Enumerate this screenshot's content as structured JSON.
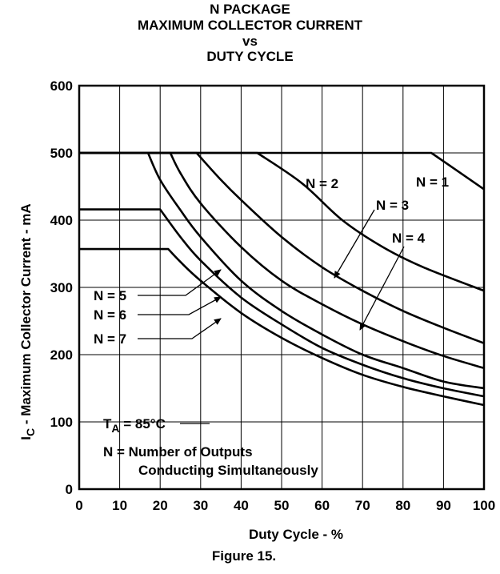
{
  "chart_data": {
    "type": "line",
    "title_lines": [
      "N PACKAGE",
      "MAXIMUM COLLECTOR CURRENT",
      "vs",
      "DUTY CYCLE"
    ],
    "xlabel": "Duty Cycle -  %",
    "ylabel_main": "I",
    "ylabel_sub": "C",
    "ylabel_rest": " -  Maximum Collector Current - mA",
    "caption": "Figure 15.",
    "xlim": [
      0,
      100
    ],
    "ylim": [
      0,
      600
    ],
    "x_ticks": [
      "0",
      "10",
      "20",
      "30",
      "40",
      "50",
      "60",
      "70",
      "80",
      "90",
      "100"
    ],
    "y_ticks": [
      "0",
      "100",
      "200",
      "300",
      "400",
      "500",
      "600"
    ],
    "grid": true,
    "series": [
      {
        "name": "N = 1",
        "points": [
          [
            0,
            500
          ],
          [
            87,
            500
          ],
          [
            100,
            446
          ]
        ]
      },
      {
        "name": "N = 2",
        "points": [
          [
            0,
            500
          ],
          [
            44,
            500
          ],
          [
            55,
            455
          ],
          [
            65,
            400
          ],
          [
            75,
            360
          ],
          [
            85,
            330
          ],
          [
            100,
            295
          ]
        ]
      },
      {
        "name": "N = 3",
        "points": [
          [
            0,
            500
          ],
          [
            29,
            500
          ],
          [
            35,
            460
          ],
          [
            40,
            430
          ],
          [
            50,
            375
          ],
          [
            60,
            330
          ],
          [
            70,
            295
          ],
          [
            80,
            265
          ],
          [
            90,
            240
          ],
          [
            100,
            217
          ]
        ]
      },
      {
        "name": "N = 4",
        "points": [
          [
            0,
            500
          ],
          [
            22.5,
            500
          ],
          [
            25,
            470
          ],
          [
            30,
            425
          ],
          [
            40,
            360
          ],
          [
            50,
            310
          ],
          [
            60,
            275
          ],
          [
            70,
            245
          ],
          [
            80,
            220
          ],
          [
            90,
            198
          ],
          [
            100,
            180
          ]
        ]
      },
      {
        "name": "N = 5",
        "points": [
          [
            17,
            500
          ],
          [
            20,
            460
          ],
          [
            25,
            415
          ],
          [
            30,
            375
          ],
          [
            40,
            310
          ],
          [
            50,
            265
          ],
          [
            60,
            230
          ],
          [
            70,
            200
          ],
          [
            80,
            180
          ],
          [
            90,
            160
          ],
          [
            100,
            150
          ]
        ]
      },
      {
        "name": "N = 6",
        "points": [
          [
            0,
            416
          ],
          [
            20,
            416
          ],
          [
            25,
            375
          ],
          [
            30,
            340
          ],
          [
            40,
            285
          ],
          [
            50,
            245
          ],
          [
            60,
            210
          ],
          [
            70,
            185
          ],
          [
            80,
            165
          ],
          [
            90,
            150
          ],
          [
            100,
            138
          ]
        ]
      },
      {
        "name": "N = 7",
        "points": [
          [
            0,
            357
          ],
          [
            22,
            357
          ],
          [
            25,
            338
          ],
          [
            30,
            310
          ],
          [
            40,
            262
          ],
          [
            50,
            225
          ],
          [
            60,
            195
          ],
          [
            70,
            170
          ],
          [
            80,
            152
          ],
          [
            90,
            138
          ],
          [
            100,
            125
          ]
        ]
      }
    ],
    "curve_labels": [
      "N = 1",
      "N = 2",
      "N = 3",
      "N = 4",
      "N = 5",
      "N = 6",
      "N = 7"
    ],
    "annotations": {
      "ta_main": "T",
      "ta_sub": "A",
      "ta_rest": " = 85°C",
      "note_line1": "N = Number of Outputs",
      "note_line2": "Conducting Simultaneously"
    }
  }
}
